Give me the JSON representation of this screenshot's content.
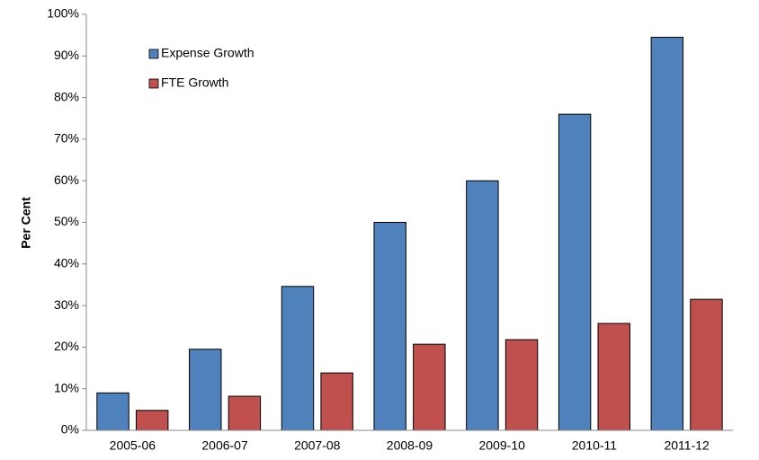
{
  "chart_data": {
    "type": "bar",
    "y_label": "Per Cent",
    "categories": [
      "2005-06",
      "2006-07",
      "2007-08",
      "2008-09",
      "2009-10",
      "2010-11",
      "2011-12"
    ],
    "series": [
      {
        "name": "Expense Growth",
        "color": "#4f81bd",
        "values": [
          9,
          19.5,
          34.6,
          50,
          60,
          76,
          94.5
        ]
      },
      {
        "name": "FTE Growth",
        "color": "#c0504d",
        "values": [
          4.8,
          8.2,
          13.8,
          20.7,
          21.8,
          25.7,
          31.5
        ]
      }
    ],
    "ylim": [
      0,
      100
    ],
    "yticks": [
      {
        "value": 0,
        "label": "0%"
      },
      {
        "value": 10,
        "label": "10%"
      },
      {
        "value": 20,
        "label": "20%"
      },
      {
        "value": 30,
        "label": "30%"
      },
      {
        "value": 40,
        "label": "40%"
      },
      {
        "value": 50,
        "label": "50%"
      },
      {
        "value": 60,
        "label": "60%"
      },
      {
        "value": 70,
        "label": "70%"
      },
      {
        "value": 80,
        "label": "80%"
      },
      {
        "value": 90,
        "label": "90%"
      },
      {
        "value": 100,
        "label": "100%"
      }
    ],
    "legend": "upper left",
    "grid": false
  }
}
